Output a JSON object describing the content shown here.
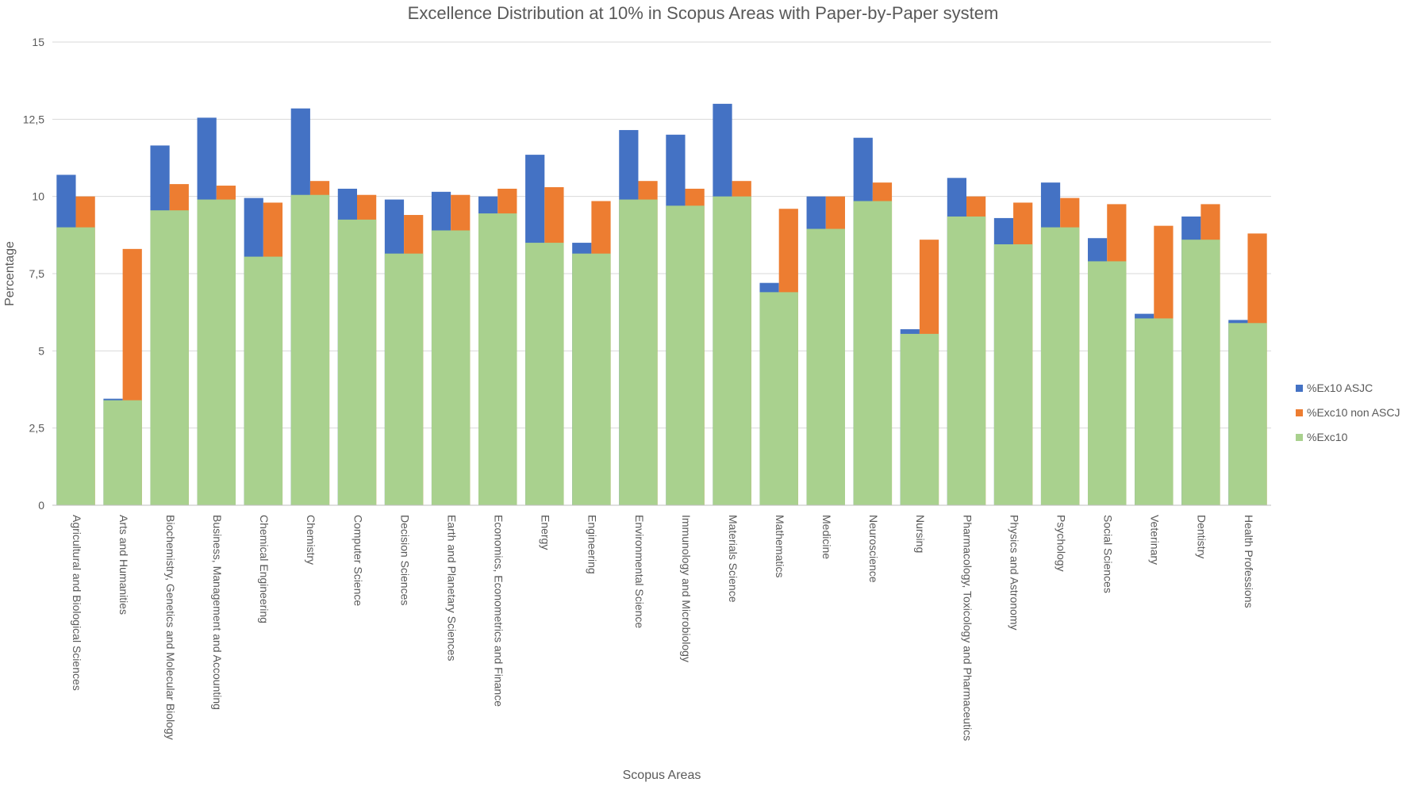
{
  "chart_data": {
    "type": "bar",
    "title": "Excellence Distribution at 10% in Scopus Areas with Paper-by-Paper system",
    "xlabel": "Scopus Areas",
    "ylabel": "Percentage",
    "ylim": [
      0,
      15
    ],
    "yticks": [
      0,
      2.5,
      5,
      7.5,
      10,
      12.5,
      15
    ],
    "ytick_labels": [
      "0",
      "2,5",
      "5",
      "7,5",
      "10",
      "12,5",
      "15"
    ],
    "grid": true,
    "legend_position": "right",
    "colors": {
      "asjc": "#4472c4",
      "non_ascj": "#ed7d31",
      "exc": "#a9d18e"
    },
    "categories": [
      "Agricultural and Biological Sciences",
      "Arts and Humanities",
      "Biochemistry, Genetics and Molecular Biology",
      "Business, Management and Accounting",
      "Chemical Engineering",
      "Chemistry",
      "Computer Science",
      "Decision Sciences",
      "Earth and Planetary Sciences",
      "Economics, Econometrics and Finance",
      "Energy",
      "Engineering",
      "Environmental Science",
      "Immunology and Microbiology",
      "Materials Science",
      "Mathematics",
      "Medicine",
      "Neuroscience",
      "Nursing",
      "Pharmacology, Toxicology and Pharmaceutics",
      "Physics and Astronomy",
      "Psychology",
      "Social Sciences",
      "Veterinary",
      "Dentistry",
      "Health Professions"
    ],
    "series": [
      {
        "name": "%Ex10 ASJC",
        "key": "asjc",
        "values": [
          10.7,
          3.45,
          11.65,
          12.55,
          9.95,
          12.85,
          10.25,
          9.9,
          10.15,
          10.0,
          11.35,
          8.5,
          12.15,
          12.0,
          13.0,
          7.2,
          10.0,
          11.9,
          5.7,
          10.6,
          9.3,
          10.45,
          8.65,
          6.2,
          9.35,
          6.0
        ]
      },
      {
        "name": "%Exc10 non ASCJ",
        "key": "non_ascj",
        "values": [
          10.0,
          8.3,
          10.4,
          10.35,
          9.8,
          10.5,
          10.05,
          9.4,
          10.05,
          10.25,
          10.3,
          9.85,
          10.5,
          10.25,
          10.5,
          9.6,
          10.0,
          10.45,
          8.6,
          10.0,
          9.8,
          9.95,
          9.75,
          9.05,
          9.75,
          8.8
        ]
      },
      {
        "name": "%Exc10",
        "key": "exc",
        "values": [
          9.0,
          3.4,
          9.55,
          9.9,
          8.05,
          10.05,
          9.25,
          8.15,
          8.9,
          9.45,
          8.5,
          8.15,
          9.9,
          9.7,
          10.0,
          6.9,
          8.95,
          9.85,
          5.55,
          9.35,
          8.45,
          9.0,
          7.9,
          6.05,
          8.6,
          5.9
        ]
      }
    ]
  }
}
